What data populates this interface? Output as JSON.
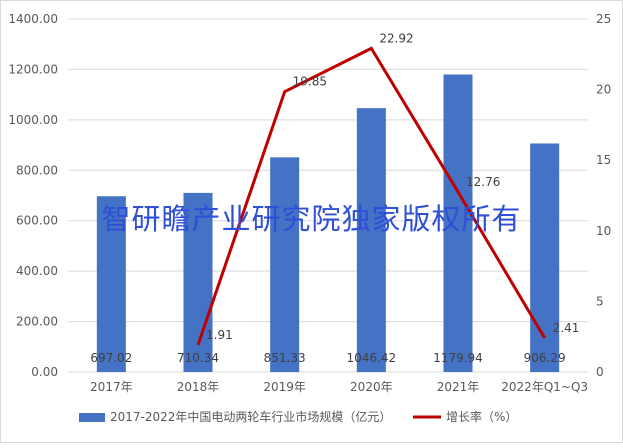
{
  "chart_data": {
    "type": "bar",
    "categories": [
      "2017年",
      "2018年",
      "2019年",
      "2020年",
      "2021年",
      "2022年Q1~Q3"
    ],
    "series": [
      {
        "name": "2017-2022年中国电动两轮车行业市场规模（亿元）",
        "type": "bar",
        "axis": "left",
        "values": [
          697.02,
          710.34,
          851.33,
          1046.42,
          1179.94,
          906.29
        ],
        "labels": [
          "697.02",
          "710.34",
          "851.33",
          "1046.42",
          "1179.94",
          "906.29"
        ],
        "color": "#4472c4"
      },
      {
        "name": "增长率（%）",
        "type": "line",
        "axis": "right",
        "values": [
          null,
          1.91,
          19.85,
          22.92,
          12.76,
          2.41
        ],
        "labels": [
          "",
          "1.91",
          "19.85",
          "22.92",
          "12.76",
          "2.41"
        ],
        "color": "#c00000"
      }
    ],
    "y_left": {
      "ylim": [
        0,
        1400
      ],
      "ticks": [
        "0.00",
        "200.00",
        "400.00",
        "600.00",
        "800.00",
        "1000.00",
        "1200.00",
        "1400.00"
      ]
    },
    "y_right": {
      "ylim": [
        0,
        25
      ],
      "ticks": [
        "0",
        "5",
        "10",
        "15",
        "20",
        "25"
      ]
    },
    "grid": true,
    "legend_position": "bottom"
  },
  "watermark": "智研瞻产业研究院独家版权所有"
}
